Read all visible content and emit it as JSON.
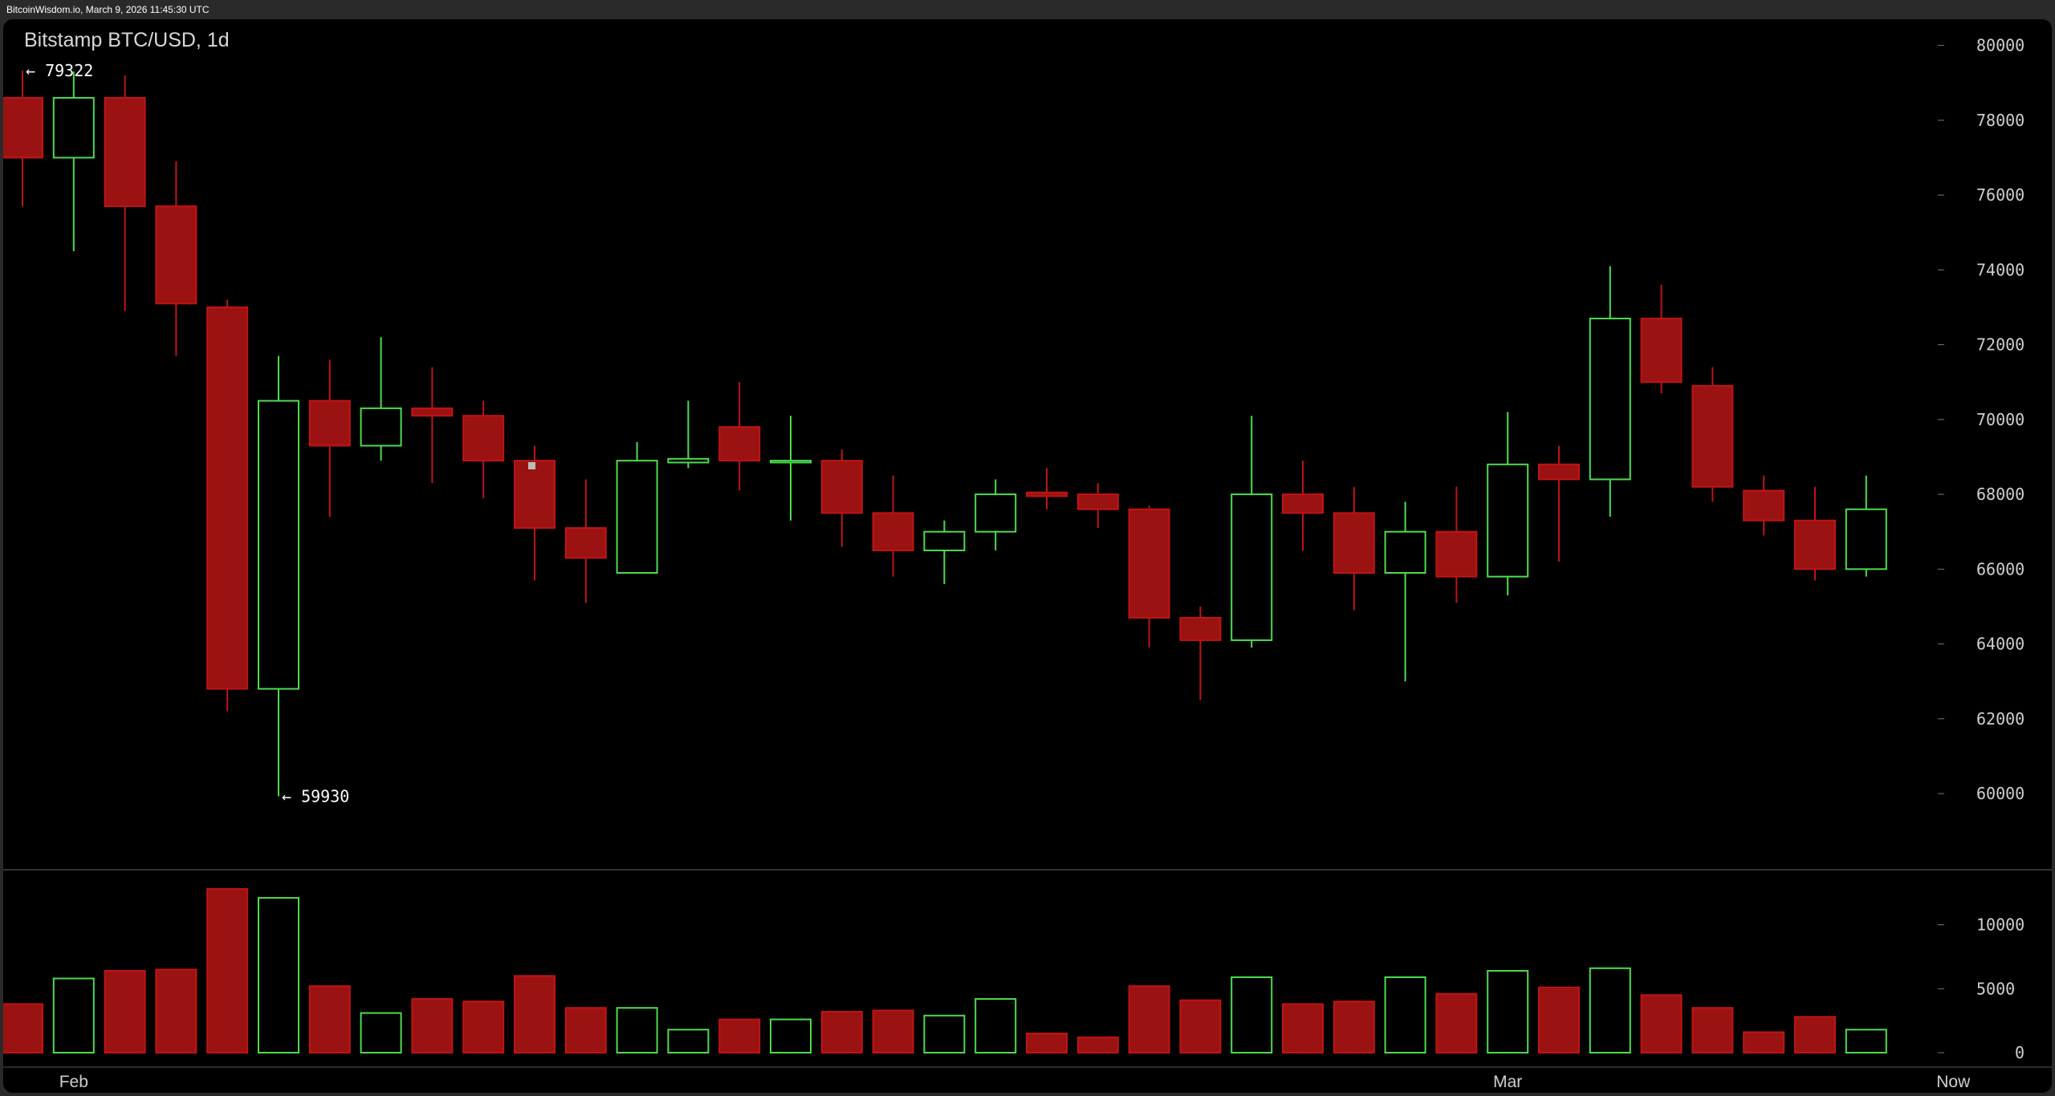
{
  "header": {
    "caption": "BitcoinWisdom.io, March 9, 2026 11:45:30 UTC"
  },
  "chart_data": {
    "type": "candlestick",
    "title": "Bitstamp BTC/USD, 1d",
    "price_axis": {
      "ylim": [
        58500,
        80700
      ],
      "ticks": [
        60000,
        62000,
        64000,
        66000,
        68000,
        70000,
        72000,
        74000,
        76000,
        78000,
        80000
      ]
    },
    "volume_axis": {
      "ylim": [
        0,
        14300
      ],
      "ticks": [
        0,
        5000,
        10000
      ]
    },
    "x_tick_labels": [
      {
        "label": "Feb",
        "index": 1
      },
      {
        "label": "Mar",
        "index": 29
      },
      {
        "label": "Now",
        "index": 37.7
      }
    ],
    "annotations": [
      {
        "text": "← 79322",
        "index": 0,
        "price": 79322
      },
      {
        "text": "← 59930",
        "index": 5,
        "price": 59930
      }
    ],
    "candles": [
      {
        "o": 78600,
        "h": 79322,
        "l": 75700,
        "c": 77000,
        "v": 3800
      },
      {
        "o": 77000,
        "h": 79300,
        "l": 74500,
        "c": 78600,
        "v": 5800
      },
      {
        "o": 78600,
        "h": 79200,
        "l": 72900,
        "c": 75700,
        "v": 6400
      },
      {
        "o": 75700,
        "h": 76900,
        "l": 71700,
        "c": 73100,
        "v": 6500
      },
      {
        "o": 73000,
        "h": 73200,
        "l": 62200,
        "c": 62800,
        "v": 12800
      },
      {
        "o": 62800,
        "h": 71700,
        "l": 59930,
        "c": 70500,
        "v": 12100
      },
      {
        "o": 70500,
        "h": 71600,
        "l": 67400,
        "c": 69300,
        "v": 5200
      },
      {
        "o": 69300,
        "h": 72200,
        "l": 68900,
        "c": 70300,
        "v": 3100
      },
      {
        "o": 70300,
        "h": 71400,
        "l": 68300,
        "c": 70100,
        "v": 4200
      },
      {
        "o": 70100,
        "h": 70500,
        "l": 67900,
        "c": 68900,
        "v": 4000
      },
      {
        "o": 68900,
        "h": 69300,
        "l": 65700,
        "c": 67100,
        "v": 6000
      },
      {
        "o": 67100,
        "h": 68400,
        "l": 65100,
        "c": 66300,
        "v": 3500
      },
      {
        "o": 65900,
        "h": 69400,
        "l": 65900,
        "c": 68900,
        "v": 3500
      },
      {
        "o": 68850,
        "h": 70500,
        "l": 68700,
        "c": 68950,
        "v": 1800
      },
      {
        "o": 69800,
        "h": 71000,
        "l": 68100,
        "c": 68900,
        "v": 2600
      },
      {
        "o": 68850,
        "h": 70100,
        "l": 67300,
        "c": 68900,
        "v": 2600
      },
      {
        "o": 68900,
        "h": 69200,
        "l": 66600,
        "c": 67500,
        "v": 3200
      },
      {
        "o": 67500,
        "h": 68500,
        "l": 65800,
        "c": 66500,
        "v": 3300
      },
      {
        "o": 66500,
        "h": 67300,
        "l": 65600,
        "c": 67000,
        "v": 2900
      },
      {
        "o": 67000,
        "h": 68400,
        "l": 66500,
        "c": 68000,
        "v": 4200
      },
      {
        "o": 68050,
        "h": 68700,
        "l": 67600,
        "c": 67950,
        "v": 1500
      },
      {
        "o": 68000,
        "h": 68300,
        "l": 67100,
        "c": 67600,
        "v": 1200
      },
      {
        "o": 67600,
        "h": 67700,
        "l": 63900,
        "c": 64700,
        "v": 5200
      },
      {
        "o": 64700,
        "h": 65000,
        "l": 62500,
        "c": 64100,
        "v": 4100
      },
      {
        "o": 64100,
        "h": 70100,
        "l": 63900,
        "c": 68000,
        "v": 5900
      },
      {
        "o": 68000,
        "h": 68900,
        "l": 66500,
        "c": 67500,
        "v": 3800
      },
      {
        "o": 67500,
        "h": 68200,
        "l": 64900,
        "c": 65900,
        "v": 4000
      },
      {
        "o": 65900,
        "h": 67800,
        "l": 63000,
        "c": 67000,
        "v": 5900
      },
      {
        "o": 67000,
        "h": 68200,
        "l": 65100,
        "c": 65800,
        "v": 4600
      },
      {
        "o": 65800,
        "h": 70200,
        "l": 65300,
        "c": 68800,
        "v": 6400
      },
      {
        "o": 68800,
        "h": 69300,
        "l": 66200,
        "c": 68400,
        "v": 5100
      },
      {
        "o": 68400,
        "h": 74100,
        "l": 67400,
        "c": 72700,
        "v": 6600
      },
      {
        "o": 72700,
        "h": 73600,
        "l": 70700,
        "c": 71000,
        "v": 4500
      },
      {
        "o": 70900,
        "h": 71400,
        "l": 67800,
        "c": 68200,
        "v": 3500
      },
      {
        "o": 68100,
        "h": 68500,
        "l": 66900,
        "c": 67300,
        "v": 1600
      },
      {
        "o": 67300,
        "h": 68200,
        "l": 65700,
        "c": 66000,
        "v": 2800
      },
      {
        "o": 66000,
        "h": 68500,
        "l": 65800,
        "c": 67600,
        "v": 1800
      }
    ],
    "colors": {
      "up": "#4ddc4d",
      "down": "#c01414",
      "down_fill": "#9b1212",
      "bg": "#000000",
      "grid": "#555555"
    }
  }
}
